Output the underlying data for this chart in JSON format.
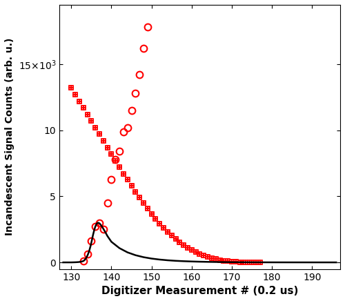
{
  "xlabel": "Digitizer Measurement # (0.2 us)",
  "ylabel": "Incandescent Signal Counts (arb. u.)",
  "xlim": [
    127,
    197
  ],
  "ylim": [
    -500,
    19500
  ],
  "xticks": [
    130,
    140,
    150,
    160,
    170,
    180,
    190
  ],
  "yticks": [
    0,
    5000,
    10000,
    15000
  ],
  "ytick_labels": [
    "0",
    "5",
    "10",
    "15x10³"
  ],
  "black_curve_x": [
    128.0,
    128.5,
    129.0,
    129.5,
    130.0,
    130.5,
    131.0,
    131.5,
    132.0,
    132.5,
    133.0,
    133.3,
    133.6,
    133.9,
    134.2,
    134.5,
    134.8,
    135.1,
    135.4,
    135.7,
    136.0,
    136.3,
    136.6,
    136.9,
    137.2,
    137.5,
    137.8,
    138.1,
    138.5,
    139.0,
    140,
    142,
    144,
    146,
    148,
    150,
    152,
    154,
    156,
    158,
    160,
    162,
    164,
    166,
    168,
    170,
    172,
    174,
    176,
    178,
    180,
    182,
    184,
    186,
    188,
    190,
    192,
    194,
    196
  ],
  "black_curve_y": [
    0,
    0,
    0,
    0,
    0,
    5,
    10,
    18,
    30,
    55,
    100,
    170,
    280,
    430,
    640,
    900,
    1230,
    1620,
    2050,
    2420,
    2720,
    2920,
    3000,
    2980,
    2900,
    2780,
    2640,
    2490,
    2280,
    2000,
    1560,
    1080,
    760,
    545,
    395,
    290,
    215,
    160,
    120,
    91,
    69,
    52,
    40,
    30,
    23,
    17,
    13,
    10,
    7.5,
    5.5,
    4,
    3,
    2.2,
    1.6,
    1.2,
    0.9,
    0.6,
    0.5,
    0.3
  ],
  "circles_x": [
    133,
    134,
    135,
    136,
    137,
    138,
    139,
    140,
    141,
    142,
    143,
    144,
    145,
    146,
    147,
    148,
    149
  ],
  "circles_y": [
    100,
    640,
    1620,
    2720,
    3000,
    2490,
    4500,
    6300,
    7800,
    8400,
    9900,
    10200,
    11500,
    12800,
    14200,
    16200,
    17800
  ],
  "crosses_x": [
    130,
    131,
    132,
    133,
    134,
    135,
    136,
    137,
    138,
    139,
    140,
    141,
    142,
    143,
    144,
    145,
    146,
    147,
    148,
    149,
    150,
    151,
    152,
    153,
    154,
    155,
    156,
    157,
    158,
    159,
    160,
    161,
    162,
    163,
    164,
    165,
    166,
    167,
    168,
    169,
    170,
    171,
    172,
    173,
    174,
    175,
    176,
    177
  ],
  "crosses_y": [
    13200,
    12700,
    12200,
    11700,
    11200,
    10700,
    10200,
    9700,
    9200,
    8700,
    8200,
    7700,
    7200,
    6700,
    6250,
    5800,
    5350,
    4900,
    4480,
    4060,
    3650,
    3280,
    2930,
    2600,
    2300,
    2020,
    1760,
    1520,
    1300,
    1100,
    930,
    775,
    640,
    520,
    415,
    325,
    248,
    183,
    130,
    88,
    55,
    30,
    13,
    4,
    0,
    0,
    0,
    0
  ],
  "squares_x": [
    130,
    131,
    132,
    133,
    134,
    135,
    136,
    137,
    138,
    139,
    140,
    141,
    142,
    143,
    144,
    145,
    146,
    147,
    148,
    149,
    150,
    151,
    152,
    153,
    154,
    155,
    156,
    157,
    158,
    159,
    160,
    161,
    162,
    163,
    164,
    165,
    166,
    167,
    168,
    169,
    170,
    171,
    172,
    173,
    174,
    175,
    176,
    177
  ],
  "squares_y": [
    13200,
    12700,
    12200,
    11700,
    11200,
    10700,
    10200,
    9700,
    9200,
    8700,
    8200,
    7700,
    7200,
    6700,
    6250,
    5800,
    5350,
    4900,
    4480,
    4060,
    3650,
    3280,
    2930,
    2600,
    2300,
    2020,
    1760,
    1520,
    1300,
    1100,
    930,
    775,
    640,
    520,
    415,
    325,
    248,
    183,
    130,
    88,
    55,
    30,
    13,
    4,
    0,
    0,
    0,
    0
  ],
  "marker_color": "#FF0000",
  "line_color": "#000000",
  "marker_size_circles": 7,
  "marker_size_crosses": 6,
  "marker_size_squares": 5,
  "line_width": 1.8
}
